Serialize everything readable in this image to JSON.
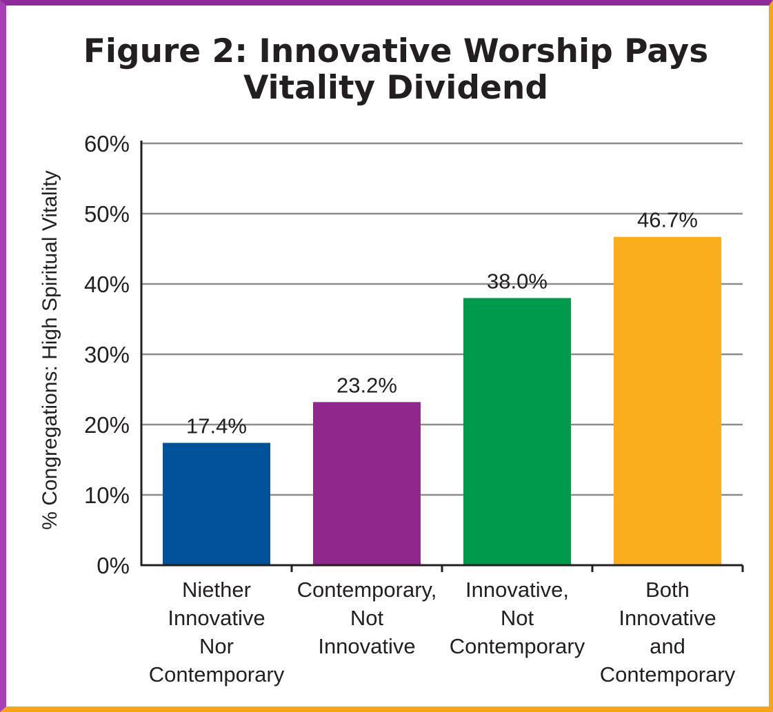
{
  "chart_data": {
    "type": "bar",
    "title_lines": [
      "Figure 2:  Innovative Worship Pays",
      "Vitality Dividend"
    ],
    "ylabel": "% Congregations: High Spiritual Vitality",
    "xlabel": "",
    "ylim": [
      0,
      60
    ],
    "yticks": [
      0,
      10,
      20,
      30,
      40,
      50,
      60
    ],
    "ytick_labels": [
      "0%",
      "10%",
      "20%",
      "30%",
      "40%",
      "50%",
      "60%"
    ],
    "grid": true,
    "categories": [
      [
        "Niether",
        "Innovative",
        "Nor",
        "Contemporary"
      ],
      [
        "Contemporary,",
        "Not",
        "Innovative"
      ],
      [
        "Innovative,",
        "Not",
        "Contemporary"
      ],
      [
        "Both",
        "Innovative",
        "and",
        "Contemporary"
      ]
    ],
    "values": [
      17.4,
      23.2,
      38.0,
      46.7
    ],
    "data_labels": [
      "17.4%",
      "23.2%",
      "38.0%",
      "46.7%"
    ],
    "bar_colors": [
      "#02519b",
      "#8f278d",
      "#009a4c",
      "#fbae1c"
    ]
  },
  "colors": {
    "border_purple": "#8e2a9a",
    "border_orange": "#f4a51a",
    "grid": "#8a8c8e",
    "axis": "#231f20"
  }
}
